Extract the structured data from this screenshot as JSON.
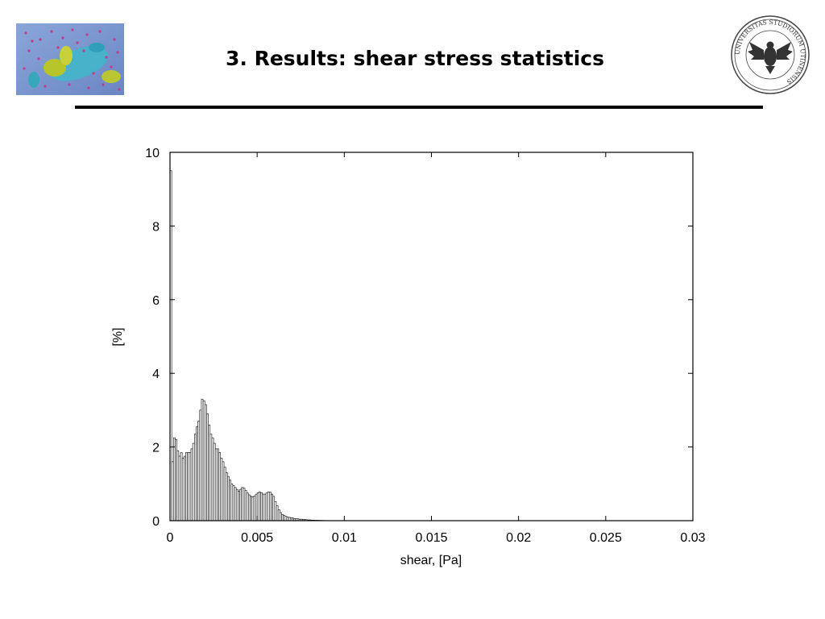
{
  "slide": {
    "title": "3. Results: shear stress statistics",
    "title_color": "#000000",
    "rule_color": "#000000"
  },
  "logos": {
    "left": "turbulence-visualization-thumbnail",
    "right": "university-seal-icon",
    "right_seal_text": "UNIVERSITAS STUDIORUM UTINENSIS"
  },
  "chart_data": {
    "type": "bar",
    "title": "",
    "xlabel": "shear, [Pa]",
    "ylabel": "[%]",
    "xlim": [
      0,
      0.03
    ],
    "ylim": [
      0,
      10
    ],
    "xticks": [
      "0",
      "0.005",
      "0.01",
      "0.015",
      "0.02",
      "0.025",
      "0.03"
    ],
    "yticks": [
      "0",
      "2",
      "4",
      "6",
      "8",
      "10"
    ],
    "grid": false,
    "legend": "none",
    "bin_width": 0.0001,
    "bin_start": 0,
    "values": [
      9.5,
      1.6,
      2.25,
      2.2,
      1.9,
      1.75,
      1.85,
      1.7,
      1.75,
      1.85,
      1.85,
      1.85,
      1.95,
      2.1,
      2.35,
      2.55,
      2.7,
      3.0,
      3.3,
      3.25,
      3.15,
      2.9,
      2.6,
      2.35,
      2.25,
      2.1,
      1.95,
      1.95,
      1.85,
      1.7,
      1.6,
      1.45,
      1.3,
      1.2,
      1.1,
      1.0,
      0.95,
      0.9,
      0.85,
      0.8,
      0.85,
      0.9,
      0.88,
      0.82,
      0.75,
      0.7,
      0.66,
      0.65,
      0.67,
      0.72,
      0.76,
      0.78,
      0.76,
      0.72,
      0.72,
      0.75,
      0.78,
      0.77,
      0.72,
      0.66,
      0.52,
      0.4,
      0.3,
      0.22,
      0.17,
      0.14,
      0.12,
      0.1,
      0.09,
      0.08,
      0.07,
      0.06,
      0.05,
      0.05,
      0.04,
      0.04,
      0.035,
      0.03,
      0.025,
      0.02,
      0.02,
      0.015,
      0.015,
      0.012,
      0.01,
      0.01,
      0.008,
      0.007,
      0.006,
      0.005,
      0.005,
      0.004,
      0.004,
      0.003,
      0.003,
      0.002,
      0.002,
      0.002,
      0.002,
      0.001,
      0.001,
      0.001,
      0.001,
      0.001,
      0.001,
      0.001,
      0.001,
      0.0005,
      0.0005,
      0.0005
    ]
  }
}
